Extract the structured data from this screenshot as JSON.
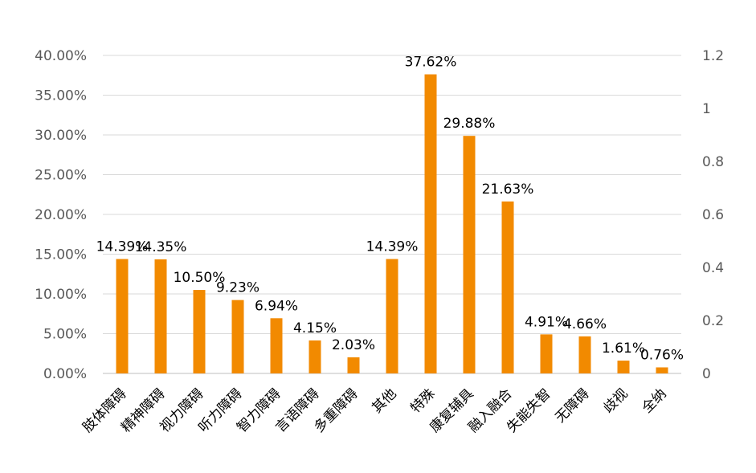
{
  "chart_data": {
    "type": "bar",
    "categories": [
      "肢体障碍",
      "精神障碍",
      "视力障碍",
      "听力障碍",
      "智力障碍",
      "言语障碍",
      "多重障碍",
      "其他",
      "特殊",
      "康复辅具",
      "融入融合",
      "失能失智",
      "无障碍",
      "歧视",
      "全纳"
    ],
    "values": [
      14.39,
      14.35,
      10.5,
      9.23,
      6.94,
      4.15,
      2.03,
      14.39,
      37.62,
      29.88,
      21.63,
      4.91,
      4.66,
      1.61,
      0.76
    ],
    "data_labels": [
      "14.39%",
      "14.35%",
      "10.50%",
      "9.23%",
      "6.94%",
      "4.15%",
      "2.03%",
      "14.39%",
      "37.62%",
      "29.88%",
      "21.63%",
      "4.91%",
      "4.66%",
      "1.61%",
      "0.76%"
    ],
    "y_ticks_left": [
      "0.00%",
      "5.00%",
      "10.00%",
      "15.00%",
      "20.00%",
      "25.00%",
      "30.00%",
      "35.00%",
      "40.00%"
    ],
    "y_ticks_right": [
      "0",
      "0.2",
      "0.4",
      "0.6",
      "0.8",
      "1",
      "1.2"
    ],
    "ylim": [
      0,
      40
    ],
    "ylim_right": [
      0,
      1.2
    ],
    "grid": true,
    "legend": "none",
    "bar_color": "#F28A00",
    "grid_color": "#D9D9D9"
  }
}
